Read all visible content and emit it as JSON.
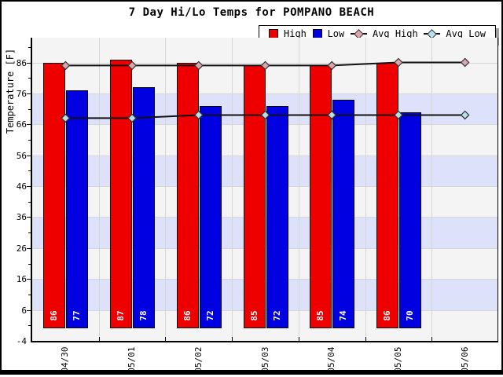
{
  "title": "7 Day Hi/Lo Temps for POMPANO BEACH",
  "legend": [
    {
      "label": "High",
      "swatch": "square",
      "color": "#ee0000"
    },
    {
      "label": "Low",
      "swatch": "square",
      "color": "#0000e0"
    },
    {
      "label": "Avg High",
      "swatch": "diamond-line",
      "color": "#d9a7ac"
    },
    {
      "label": "Avg Low",
      "swatch": "diamond-line",
      "color": "#b7dfe9"
    }
  ],
  "chart_data": {
    "type": "bar",
    "title": "7 Day Hi/Lo Temps for POMPANO BEACH",
    "categories": [
      "04/30",
      "05/01",
      "05/02",
      "05/03",
      "05/04",
      "05/05",
      "05/06"
    ],
    "series": [
      {
        "name": "High",
        "type": "bar",
        "color": "#ee0000",
        "values": [
          86,
          87,
          86,
          85,
          85,
          86,
          null
        ]
      },
      {
        "name": "Low",
        "type": "bar",
        "color": "#0000e0",
        "values": [
          77,
          78,
          72,
          72,
          74,
          70,
          null
        ]
      },
      {
        "name": "Avg High",
        "type": "line",
        "color": "#d9a7ac",
        "values": [
          85,
          85,
          85,
          85,
          85,
          86,
          86
        ]
      },
      {
        "name": "Avg Low",
        "type": "line",
        "color": "#b7dfe9",
        "values": [
          68,
          68,
          69,
          69,
          69,
          69,
          69
        ]
      }
    ],
    "xlabel": "",
    "ylabel": "Temperature [F]",
    "yticks": [
      -4,
      6,
      16,
      26,
      36,
      46,
      56,
      66,
      76,
      86
    ],
    "ylim": [
      -4,
      94
    ],
    "bar_base": 0,
    "bands": [
      [
        66,
        76
      ],
      [
        46,
        56
      ],
      [
        26,
        36
      ],
      [
        6,
        16
      ]
    ],
    "grid": true,
    "legend_position": "top-right"
  },
  "colors": {
    "band_light": "#f4f4f4",
    "band_blue": "#dde1fa",
    "gridline": "#d6d6d6",
    "line": "#111111",
    "bar_label_text": "#ffffff"
  }
}
